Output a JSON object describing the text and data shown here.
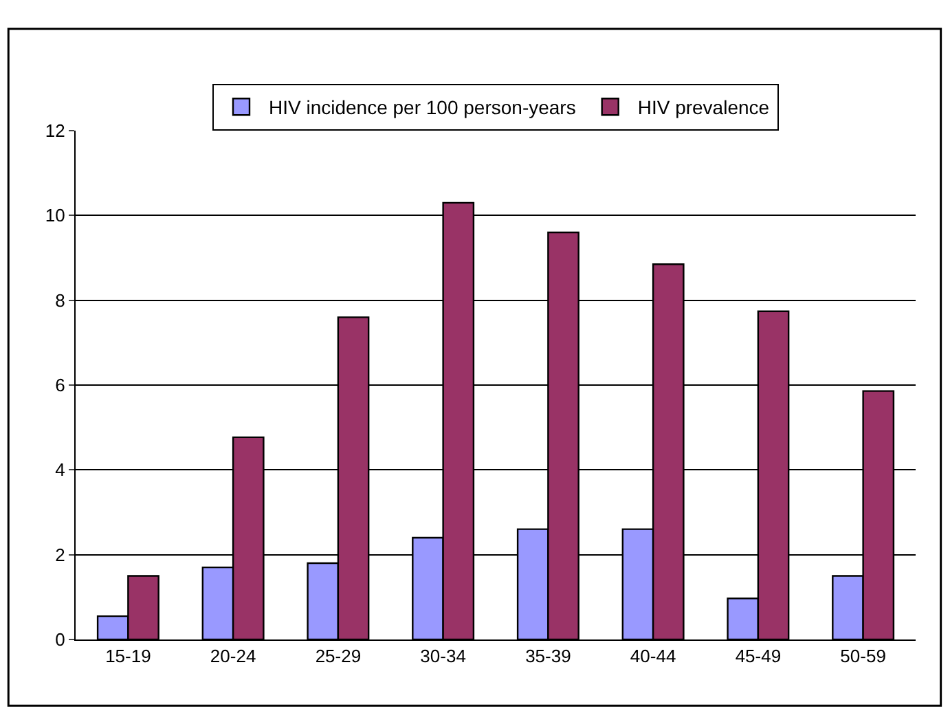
{
  "chart_data": {
    "type": "bar",
    "categories": [
      "15-19",
      "20-24",
      "25-29",
      "30-34",
      "35-39",
      "40-44",
      "45-49",
      "50-59"
    ],
    "series": [
      {
        "name": "HIV incidence per 100 person-years",
        "color": "#9999ff",
        "values": [
          0.55,
          1.7,
          1.8,
          2.4,
          2.6,
          2.6,
          0.97,
          1.5
        ]
      },
      {
        "name": "HIV prevalence",
        "color": "#993366",
        "values": [
          1.5,
          4.77,
          7.6,
          10.3,
          9.6,
          8.85,
          7.74,
          5.86
        ]
      }
    ],
    "ylim": [
      0,
      12
    ],
    "yticks": [
      0,
      2,
      4,
      6,
      8,
      10,
      12
    ],
    "grid": "y",
    "legend": "top"
  }
}
